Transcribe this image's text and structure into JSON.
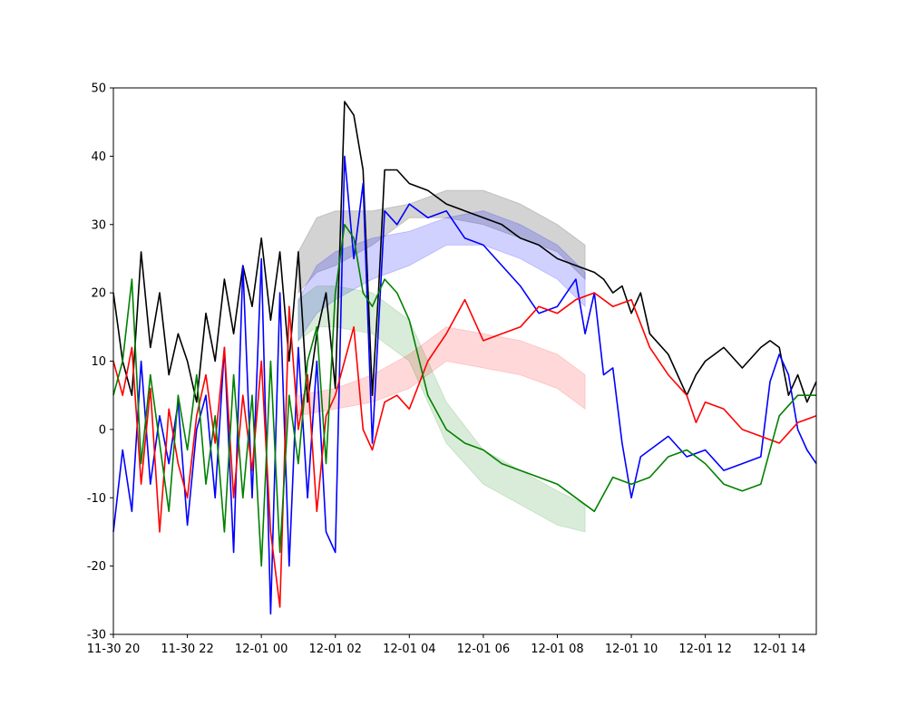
{
  "chart_data": {
    "type": "line",
    "title": "",
    "xlabel": "",
    "ylabel": "",
    "xlim": [
      "2021-11-30 20:00",
      "2021-12-01 15:00"
    ],
    "ylim": [
      -30,
      50
    ],
    "grid": false,
    "x_ticks": [
      {
        "t": "2021-11-30 20:00",
        "label": "11-30 20"
      },
      {
        "t": "2021-11-30 22:00",
        "label": "11-30 22"
      },
      {
        "t": "2021-12-01 00:00",
        "label": "12-01 00"
      },
      {
        "t": "2021-12-01 02:00",
        "label": "12-01 02"
      },
      {
        "t": "2021-12-01 04:00",
        "label": "12-01 04"
      },
      {
        "t": "2021-12-01 06:00",
        "label": "12-01 06"
      },
      {
        "t": "2021-12-01 08:00",
        "label": "12-01 08"
      },
      {
        "t": "2021-12-01 10:00",
        "label": "12-01 10"
      },
      {
        "t": "2021-12-01 12:00",
        "label": "12-01 12"
      },
      {
        "t": "2021-12-01 14:00",
        "label": "12-01 14"
      }
    ],
    "y_ticks": [
      -30,
      -20,
      -10,
      0,
      10,
      20,
      30,
      40,
      50
    ],
    "bands": [
      {
        "color": "#808080",
        "opacity": 0.35,
        "x": [
          "2021-12-01 01:00",
          "2021-12-01 01:30",
          "2021-12-01 02:00",
          "2021-12-01 03:00",
          "2021-12-01 04:00",
          "2021-12-01 05:00",
          "2021-12-01 06:00",
          "2021-12-01 07:00",
          "2021-12-01 08:00",
          "2021-12-01 08:45"
        ],
        "upper": [
          26,
          31,
          32,
          32,
          33,
          35,
          35,
          33,
          30,
          27
        ],
        "lower": [
          20,
          23,
          24,
          27,
          31,
          31,
          30,
          28,
          26,
          22
        ]
      },
      {
        "color": "#0000ff",
        "opacity": 0.18,
        "x": [
          "2021-12-01 01:00",
          "2021-12-01 01:30",
          "2021-12-01 02:00",
          "2021-12-01 03:00",
          "2021-12-01 04:00",
          "2021-12-01 05:00",
          "2021-12-01 06:00",
          "2021-12-01 07:00",
          "2021-12-01 08:00",
          "2021-12-01 08:45"
        ],
        "upper": [
          19,
          24,
          26,
          28,
          29,
          31,
          32,
          30,
          27,
          23
        ],
        "lower": [
          13,
          17,
          19,
          22,
          24,
          27,
          27,
          25,
          22,
          18
        ]
      },
      {
        "color": "#008000",
        "opacity": 0.15,
        "x": [
          "2021-12-01 01:00",
          "2021-12-01 01:30",
          "2021-12-01 02:00",
          "2021-12-01 03:00",
          "2021-12-01 04:00",
          "2021-12-01 05:00",
          "2021-12-01 06:00",
          "2021-12-01 07:00",
          "2021-12-01 08:00",
          "2021-12-01 08:45"
        ],
        "upper": [
          19,
          21,
          21,
          20,
          16,
          4,
          -3,
          -6,
          -9,
          -11
        ],
        "lower": [
          13,
          15,
          15,
          14,
          10,
          -2,
          -8,
          -11,
          -14,
          -15
        ]
      },
      {
        "color": "#ff0000",
        "opacity": 0.15,
        "x": [
          "2021-12-01 01:00",
          "2021-12-01 02:00",
          "2021-12-01 03:00",
          "2021-12-01 04:00",
          "2021-12-01 05:00",
          "2021-12-01 06:00",
          "2021-12-01 07:00",
          "2021-12-01 08:00",
          "2021-12-01 08:45"
        ],
        "upper": [
          5,
          6,
          8,
          11,
          15,
          14,
          13,
          11,
          8
        ],
        "lower": [
          2,
          3,
          4,
          6,
          10,
          9,
          8,
          6,
          3
        ]
      }
    ],
    "series": [
      {
        "color": "#000000",
        "x": [
          "2021-11-30 20:00",
          "2021-11-30 20:15",
          "2021-11-30 20:30",
          "2021-11-30 20:45",
          "2021-11-30 21:00",
          "2021-11-30 21:15",
          "2021-11-30 21:30",
          "2021-11-30 21:45",
          "2021-11-30 22:00",
          "2021-11-30 22:15",
          "2021-11-30 22:30",
          "2021-11-30 22:45",
          "2021-11-30 23:00",
          "2021-11-30 23:15",
          "2021-11-30 23:30",
          "2021-11-30 23:45",
          "2021-12-01 00:00",
          "2021-12-01 00:15",
          "2021-12-01 00:30",
          "2021-12-01 00:45",
          "2021-12-01 01:00",
          "2021-12-01 01:15",
          "2021-12-01 01:30",
          "2021-12-01 01:45",
          "2021-12-01 02:00",
          "2021-12-01 02:15",
          "2021-12-01 02:30",
          "2021-12-01 02:45",
          "2021-12-01 03:00",
          "2021-12-01 03:10",
          "2021-12-01 03:20",
          "2021-12-01 03:40",
          "2021-12-01 04:00",
          "2021-12-01 04:30",
          "2021-12-01 05:00",
          "2021-12-01 05:30",
          "2021-12-01 06:00",
          "2021-12-01 06:30",
          "2021-12-01 07:00",
          "2021-12-01 07:30",
          "2021-12-01 08:00",
          "2021-12-01 08:30",
          "2021-12-01 09:00",
          "2021-12-01 09:15",
          "2021-12-01 09:30",
          "2021-12-01 09:45",
          "2021-12-01 10:00",
          "2021-12-01 10:15",
          "2021-12-01 10:30",
          "2021-12-01 11:00",
          "2021-12-01 11:30",
          "2021-12-01 11:45",
          "2021-12-01 12:00",
          "2021-12-01 12:15",
          "2021-12-01 12:30",
          "2021-12-01 13:00",
          "2021-12-01 13:30",
          "2021-12-01 13:45",
          "2021-12-01 14:00",
          "2021-12-01 14:15",
          "2021-12-01 14:30",
          "2021-12-01 14:45",
          "2021-12-01 15:00"
        ],
        "values": [
          20,
          10,
          5,
          26,
          12,
          20,
          8,
          14,
          10,
          4,
          17,
          10,
          22,
          14,
          24,
          18,
          28,
          16,
          26,
          10,
          26,
          4,
          14,
          20,
          6,
          48,
          46,
          38,
          5,
          20,
          38,
          38,
          36,
          35,
          33,
          32,
          31,
          30,
          28,
          27,
          25,
          24,
          23,
          22,
          20,
          21,
          17,
          20,
          14,
          11,
          5,
          8,
          10,
          11,
          12,
          9,
          12,
          13,
          12,
          5,
          8,
          4,
          7
        ]
      },
      {
        "color": "#0000ff",
        "x": [
          "2021-11-30 20:00",
          "2021-11-30 20:15",
          "2021-11-30 20:30",
          "2021-11-30 20:45",
          "2021-11-30 21:00",
          "2021-11-30 21:15",
          "2021-11-30 21:30",
          "2021-11-30 21:45",
          "2021-11-30 22:00",
          "2021-11-30 22:15",
          "2021-11-30 22:30",
          "2021-11-30 22:45",
          "2021-11-30 23:00",
          "2021-11-30 23:15",
          "2021-11-30 23:30",
          "2021-11-30 23:45",
          "2021-12-01 00:00",
          "2021-12-01 00:15",
          "2021-12-01 00:30",
          "2021-12-01 00:45",
          "2021-12-01 01:00",
          "2021-12-01 01:15",
          "2021-12-01 01:30",
          "2021-12-01 01:45",
          "2021-12-01 02:00",
          "2021-12-01 02:15",
          "2021-12-01 02:30",
          "2021-12-01 02:45",
          "2021-12-01 03:00",
          "2021-12-01 03:10",
          "2021-12-01 03:20",
          "2021-12-01 03:40",
          "2021-12-01 04:00",
          "2021-12-01 04:30",
          "2021-12-01 05:00",
          "2021-12-01 05:30",
          "2021-12-01 06:00",
          "2021-12-01 06:30",
          "2021-12-01 07:00",
          "2021-12-01 07:30",
          "2021-12-01 08:00",
          "2021-12-01 08:30",
          "2021-12-01 08:45",
          "2021-12-01 09:00",
          "2021-12-01 09:15",
          "2021-12-01 09:30",
          "2021-12-01 09:45",
          "2021-12-01 10:00",
          "2021-12-01 10:15",
          "2021-12-01 10:30",
          "2021-12-01 11:00",
          "2021-12-01 11:30",
          "2021-12-01 12:00",
          "2021-12-01 12:30",
          "2021-12-01 13:00",
          "2021-12-01 13:30",
          "2021-12-01 13:45",
          "2021-12-01 14:00",
          "2021-12-01 14:15",
          "2021-12-01 14:30",
          "2021-12-01 14:45",
          "2021-12-01 15:00"
        ],
        "values": [
          -15,
          -3,
          -12,
          10,
          -8,
          2,
          -5,
          4,
          -14,
          0,
          5,
          -10,
          12,
          -18,
          24,
          -10,
          25,
          -27,
          20,
          -20,
          12,
          -10,
          10,
          -15,
          -18,
          40,
          25,
          36,
          -2,
          15,
          32,
          30,
          33,
          31,
          32,
          28,
          27,
          24,
          21,
          17,
          18,
          22,
          14,
          20,
          8,
          9,
          -2,
          -10,
          -4,
          -3,
          -1,
          -4,
          -3,
          -6,
          -5,
          -4,
          7,
          11,
          8,
          0,
          -3,
          -5
        ]
      },
      {
        "color": "#ff0000",
        "x": [
          "2021-11-30 20:00",
          "2021-11-30 20:15",
          "2021-11-30 20:30",
          "2021-11-30 20:45",
          "2021-11-30 21:00",
          "2021-11-30 21:15",
          "2021-11-30 21:30",
          "2021-11-30 21:45",
          "2021-11-30 22:00",
          "2021-11-30 22:15",
          "2021-11-30 22:30",
          "2021-11-30 22:45",
          "2021-11-30 23:00",
          "2021-11-30 23:15",
          "2021-11-30 23:30",
          "2021-11-30 23:45",
          "2021-12-01 00:00",
          "2021-12-01 00:15",
          "2021-12-01 00:30",
          "2021-12-01 00:45",
          "2021-12-01 01:00",
          "2021-12-01 01:15",
          "2021-12-01 01:30",
          "2021-12-01 01:45",
          "2021-12-01 02:00",
          "2021-12-01 02:15",
          "2021-12-01 02:30",
          "2021-12-01 02:45",
          "2021-12-01 03:00",
          "2021-12-01 03:20",
          "2021-12-01 03:40",
          "2021-12-01 04:00",
          "2021-12-01 04:30",
          "2021-12-01 05:00",
          "2021-12-01 05:30",
          "2021-12-01 06:00",
          "2021-12-01 06:30",
          "2021-12-01 07:00",
          "2021-12-01 07:30",
          "2021-12-01 08:00",
          "2021-12-01 08:30",
          "2021-12-01 09:00",
          "2021-12-01 09:30",
          "2021-12-01 10:00",
          "2021-12-01 10:30",
          "2021-12-01 11:00",
          "2021-12-01 11:30",
          "2021-12-01 11:45",
          "2021-12-01 12:00",
          "2021-12-01 12:30",
          "2021-12-01 13:00",
          "2021-12-01 13:30",
          "2021-12-01 14:00",
          "2021-12-01 14:30",
          "2021-12-01 15:00"
        ],
        "values": [
          10,
          5,
          12,
          -8,
          6,
          -15,
          3,
          -5,
          -10,
          2,
          8,
          -2,
          12,
          -10,
          5,
          -6,
          10,
          -15,
          -26,
          18,
          0,
          8,
          -12,
          2,
          5,
          10,
          15,
          0,
          -3,
          4,
          5,
          3,
          10,
          14,
          19,
          13,
          14,
          15,
          18,
          17,
          19,
          20,
          18,
          19,
          12,
          8,
          5,
          1,
          4,
          3,
          0,
          -1,
          -2,
          1,
          2
        ]
      },
      {
        "color": "#008000",
        "x": [
          "2021-11-30 20:00",
          "2021-11-30 20:15",
          "2021-11-30 20:30",
          "2021-11-30 20:45",
          "2021-11-30 21:00",
          "2021-11-30 21:15",
          "2021-11-30 21:30",
          "2021-11-30 21:45",
          "2021-11-30 22:00",
          "2021-11-30 22:15",
          "2021-11-30 22:30",
          "2021-11-30 22:45",
          "2021-11-30 23:00",
          "2021-11-30 23:15",
          "2021-11-30 23:30",
          "2021-11-30 23:45",
          "2021-12-01 00:00",
          "2021-12-01 00:15",
          "2021-12-01 00:30",
          "2021-12-01 00:45",
          "2021-12-01 01:00",
          "2021-12-01 01:15",
          "2021-12-01 01:30",
          "2021-12-01 01:45",
          "2021-12-01 02:00",
          "2021-12-01 02:15",
          "2021-12-01 02:30",
          "2021-12-01 02:45",
          "2021-12-01 03:00",
          "2021-12-01 03:20",
          "2021-12-01 03:40",
          "2021-12-01 04:00",
          "2021-12-01 04:30",
          "2021-12-01 05:00",
          "2021-12-01 05:30",
          "2021-12-01 06:00",
          "2021-12-01 06:30",
          "2021-12-01 07:00",
          "2021-12-01 07:30",
          "2021-12-01 08:00",
          "2021-12-01 08:30",
          "2021-12-01 09:00",
          "2021-12-01 09:30",
          "2021-12-01 10:00",
          "2021-12-01 10:30",
          "2021-12-01 11:00",
          "2021-12-01 11:30",
          "2021-12-01 12:00",
          "2021-12-01 12:30",
          "2021-12-01 13:00",
          "2021-12-01 13:30",
          "2021-12-01 14:00",
          "2021-12-01 14:30",
          "2021-12-01 15:00"
        ],
        "values": [
          5,
          10,
          22,
          -5,
          8,
          -2,
          -12,
          5,
          -3,
          8,
          -8,
          2,
          -15,
          8,
          -10,
          5,
          -20,
          10,
          -18,
          5,
          -5,
          10,
          15,
          -5,
          20,
          30,
          28,
          20,
          18,
          22,
          20,
          16,
          5,
          0,
          -2,
          -3,
          -5,
          -6,
          -7,
          -8,
          -10,
          -12,
          -7,
          -8,
          -7,
          -4,
          -3,
          -5,
          -8,
          -9,
          -8,
          2,
          5,
          5
        ]
      }
    ]
  }
}
